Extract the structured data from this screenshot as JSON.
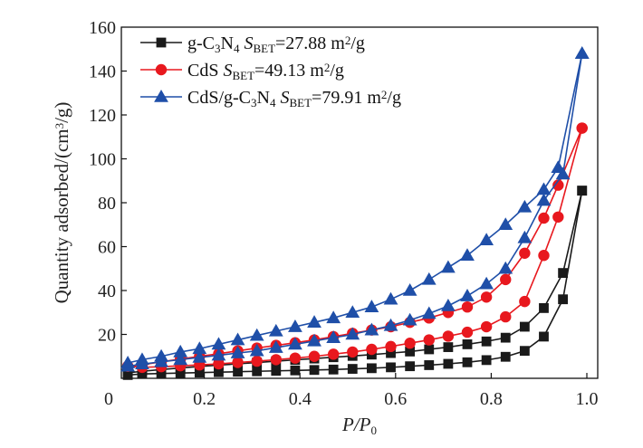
{
  "chart_data": {
    "type": "line",
    "xlabel": {
      "main": "P/P",
      "sub": "0"
    },
    "ylabel": {
      "main": "Quantity adsorbed/(cm",
      "sup": "3",
      "tail": "/g)"
    },
    "xlim": [
      0,
      1.0
    ],
    "ylim": [
      0,
      160
    ],
    "x_ticks": [
      0,
      0.2,
      0.4,
      0.6,
      0.8,
      1.0
    ],
    "x_tick_labels": [
      "0",
      "0.2",
      "0.4",
      "0.6",
      "0.8",
      "1.0"
    ],
    "y_ticks": [
      20,
      40,
      60,
      80,
      100,
      120,
      140,
      160
    ],
    "y_tick_labels": [
      "20",
      "40",
      "60",
      "80",
      "100",
      "120",
      "140",
      "160"
    ],
    "grid": false,
    "legend_position": "top-left",
    "series": [
      {
        "name": "g-C3N4",
        "legend_parts": [
          {
            "t": "g-C",
            "s": "n"
          },
          {
            "t": "3",
            "s": "sub"
          },
          {
            "t": "N",
            "s": "n"
          },
          {
            "t": "4",
            "s": "sub"
          },
          {
            "t": " ",
            "s": "n"
          },
          {
            "t": "S",
            "s": "i"
          },
          {
            "t": "BET",
            "s": "sub"
          },
          {
            "t": "=27.88 m",
            "s": "n"
          },
          {
            "t": "2",
            "s": "sup"
          },
          {
            "t": "/g",
            "s": "n"
          }
        ],
        "color": "#1a1a1a",
        "marker": "square",
        "adsorption": {
          "x": [
            0.04,
            0.07,
            0.11,
            0.15,
            0.19,
            0.23,
            0.27,
            0.31,
            0.35,
            0.39,
            0.43,
            0.47,
            0.51,
            0.55,
            0.59,
            0.63,
            0.67,
            0.71,
            0.75,
            0.79,
            0.83,
            0.87,
            0.91,
            0.95,
            0.99
          ],
          "y": [
            1.5,
            2.0,
            2.2,
            2.4,
            2.6,
            2.8,
            3.0,
            3.2,
            3.4,
            3.6,
            3.8,
            4.0,
            4.3,
            4.6,
            5.0,
            5.5,
            6.0,
            6.6,
            7.3,
            8.3,
            9.8,
            12.5,
            19,
            36,
            85.5
          ]
        },
        "desorption": {
          "x": [
            0.99,
            0.95,
            0.91,
            0.87,
            0.83,
            0.79,
            0.75,
            0.71,
            0.67,
            0.63,
            0.59,
            0.55,
            0.51,
            0.47,
            0.43,
            0.39,
            0.35,
            0.31,
            0.27,
            0.23,
            0.19,
            0.15,
            0.11,
            0.07,
            0.04
          ],
          "y": [
            85.5,
            48,
            32,
            23.5,
            18.5,
            16.8,
            15.5,
            14.2,
            13.2,
            12.2,
            11.5,
            10.8,
            10.2,
            9.6,
            9.0,
            8.4,
            7.8,
            7.2,
            6.6,
            6.0,
            5.4,
            4.7,
            4.0,
            3.2,
            2.5
          ]
        }
      },
      {
        "name": "CdS",
        "legend_parts": [
          {
            "t": "CdS ",
            "s": "n"
          },
          {
            "t": "S",
            "s": "i"
          },
          {
            "t": "BET",
            "s": "sub"
          },
          {
            "t": "=49.13 m",
            "s": "n"
          },
          {
            "t": "2",
            "s": "sup"
          },
          {
            "t": "/g",
            "s": "n"
          }
        ],
        "color": "#e8181e",
        "marker": "circle",
        "adsorption": {
          "x": [
            0.04,
            0.07,
            0.11,
            0.15,
            0.19,
            0.23,
            0.27,
            0.31,
            0.35,
            0.39,
            0.43,
            0.47,
            0.51,
            0.55,
            0.59,
            0.63,
            0.67,
            0.71,
            0.75,
            0.79,
            0.83,
            0.87,
            0.91,
            0.94,
            0.99
          ],
          "y": [
            5.5,
            5.0,
            5.3,
            5.7,
            6.1,
            6.6,
            7.2,
            7.8,
            8.5,
            9.2,
            10.0,
            11.0,
            12.0,
            13.2,
            14.5,
            16.0,
            17.5,
            19.2,
            21.0,
            23.5,
            28.0,
            35.0,
            56.0,
            73.5,
            114
          ]
        },
        "desorption": {
          "x": [
            0.99,
            0.94,
            0.91,
            0.87,
            0.83,
            0.79,
            0.75,
            0.71,
            0.67,
            0.63,
            0.59,
            0.55,
            0.51,
            0.47,
            0.43,
            0.39,
            0.35,
            0.31,
            0.27,
            0.23,
            0.19,
            0.15,
            0.11,
            0.07,
            0.04
          ],
          "y": [
            114,
            88,
            73,
            57,
            45,
            37,
            32.5,
            30,
            27.5,
            25.5,
            23.5,
            22,
            20.5,
            19,
            17.5,
            16.2,
            15,
            13.8,
            12.5,
            11.2,
            10,
            8.8,
            7.5,
            6.2,
            5.5
          ]
        }
      },
      {
        "name": "CdS/g-C3N4",
        "legend_parts": [
          {
            "t": "CdS/g-C",
            "s": "n"
          },
          {
            "t": "3",
            "s": "sub"
          },
          {
            "t": "N",
            "s": "n"
          },
          {
            "t": "4",
            "s": "sub"
          },
          {
            "t": " ",
            "s": "n"
          },
          {
            "t": "S",
            "s": "i"
          },
          {
            "t": "BET",
            "s": "sub"
          },
          {
            "t": "=79.91 m",
            "s": "n"
          },
          {
            "t": "2",
            "s": "sup"
          },
          {
            "t": "/g",
            "s": "n"
          }
        ],
        "color": "#1f4fa8",
        "marker": "triangle",
        "adsorption": {
          "x": [
            0.04,
            0.07,
            0.11,
            0.15,
            0.19,
            0.23,
            0.27,
            0.31,
            0.35,
            0.39,
            0.43,
            0.47,
            0.51,
            0.55,
            0.59,
            0.63,
            0.67,
            0.71,
            0.75,
            0.79,
            0.83,
            0.87,
            0.91,
            0.95,
            0.99
          ],
          "y": [
            5.5,
            6.5,
            7.5,
            8.5,
            9.5,
            10.5,
            11.5,
            12.5,
            14,
            15.5,
            17,
            18.5,
            20,
            22,
            24,
            26.5,
            29.5,
            33,
            37.5,
            43,
            50,
            64,
            81,
            93,
            148
          ]
        },
        "desorption": {
          "x": [
            0.99,
            0.94,
            0.91,
            0.87,
            0.83,
            0.79,
            0.75,
            0.71,
            0.67,
            0.63,
            0.59,
            0.55,
            0.51,
            0.47,
            0.43,
            0.39,
            0.35,
            0.31,
            0.27,
            0.23,
            0.19,
            0.15,
            0.11,
            0.07,
            0.04
          ],
          "y": [
            148,
            96,
            86,
            78,
            70,
            63,
            56,
            50.5,
            45,
            40,
            36,
            32.5,
            30,
            27.5,
            25.5,
            23.5,
            21.5,
            19.5,
            17.5,
            15.5,
            13.5,
            12,
            10,
            8.5,
            7.0
          ]
        }
      }
    ]
  }
}
